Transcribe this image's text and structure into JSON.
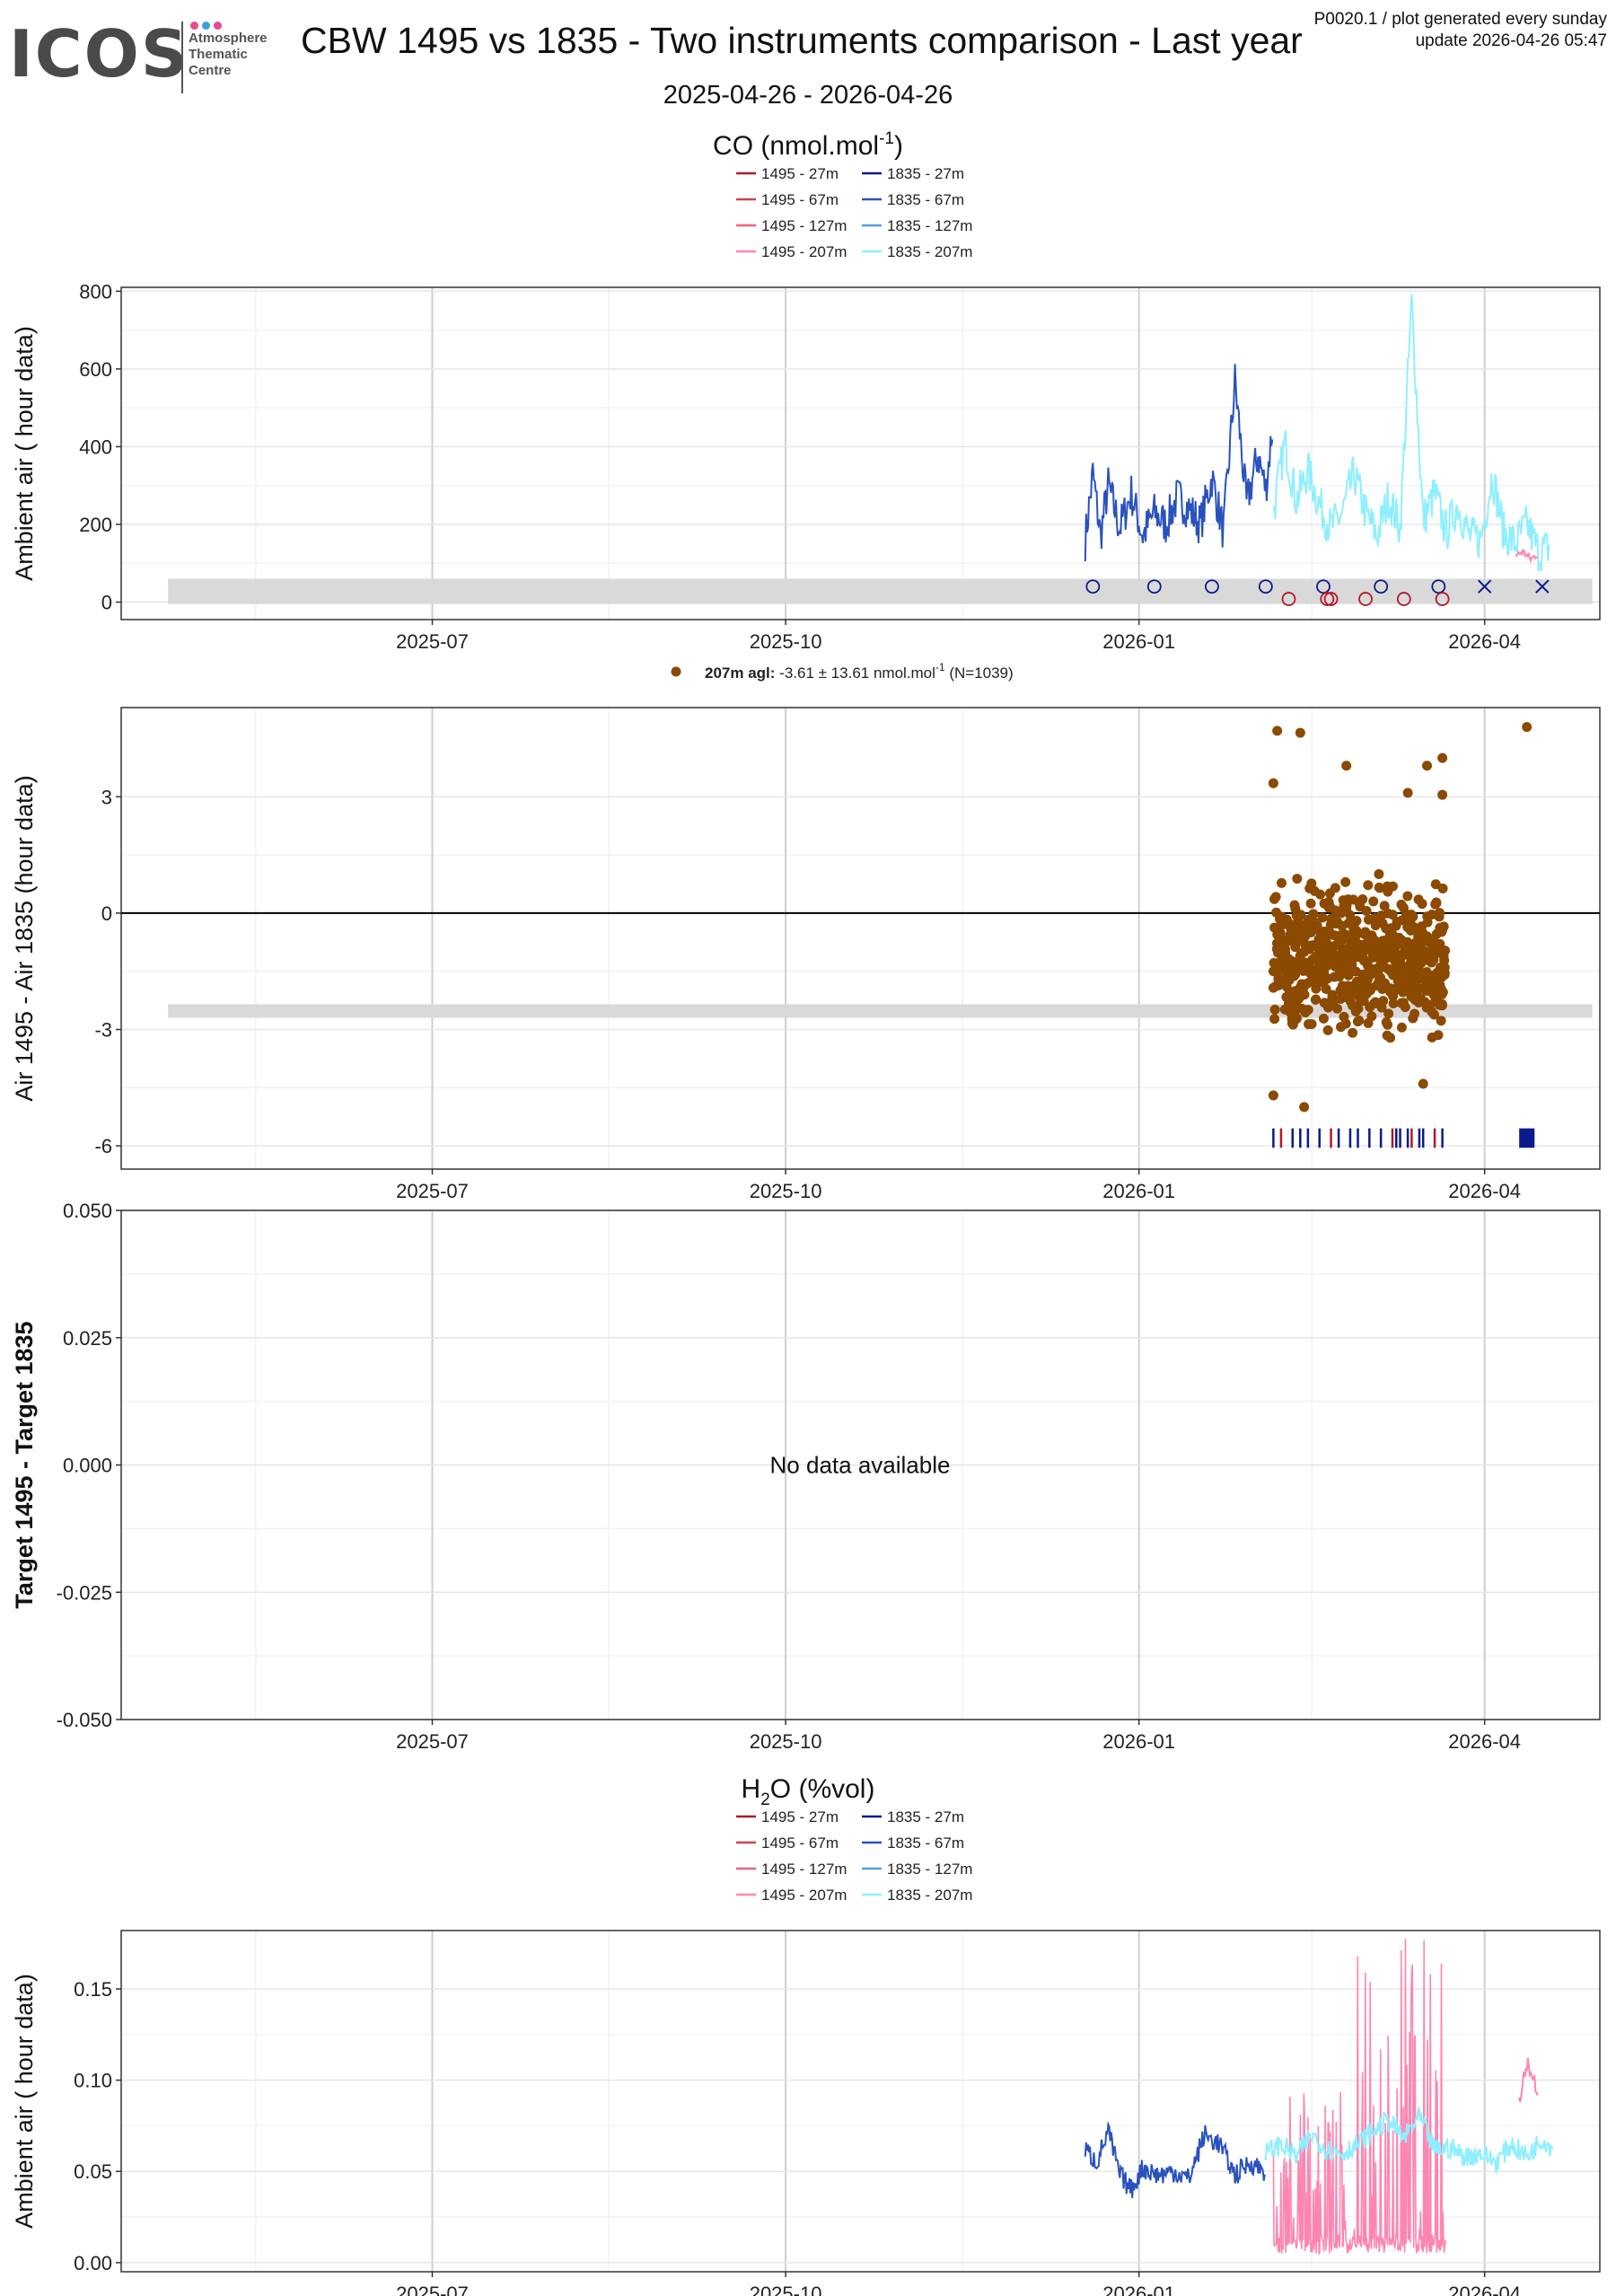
{
  "header": {
    "logo_text": "ICOS",
    "logo_subtitle": [
      "Atmosphere",
      "Thematic",
      "Centre"
    ],
    "title": "CBW 1495 vs 1835 - Two instruments comparison - Last year",
    "date_range": "2025-04-26 - 2026-04-26",
    "plot_code": "P0020.1 / plot generated every sunday",
    "update": "update  2026-04-26 05:47"
  },
  "colors": {
    "1495-27m": "#b2182b",
    "1495-67m": "#d6404e",
    "1495-127m": "#f0607a",
    "1495-207m": "#ff85b0",
    "1835-27m": "#0b1a8c",
    "1835-67m": "#2a52be",
    "1835-127m": "#5a9be0",
    "1835-207m": "#8fefff",
    "diff": "#8b4a00",
    "band": "#d9d9d9",
    "grid": "#ebebeb"
  },
  "legend_entries_left": [
    "1495 - 27m",
    "1495 - 67m",
    "1495 - 127m",
    "1495 - 207m"
  ],
  "legend_entries_right": [
    "1835 - 27m",
    "1835 - 67m",
    "1835 - 127m",
    "1835 - 207m"
  ],
  "x_ticks": [
    "2025-07",
    "2025-10",
    "2026-01",
    "2026-04"
  ],
  "chart_data": [
    {
      "type": "line",
      "section_title": "CO (nmol.mol",
      "section_title_sup": "-1",
      "section_title_end": ")",
      "ylabel": "Ambient air ( hour data)",
      "ylim": [
        -45,
        810
      ],
      "yticks": [
        "0",
        "200",
        "400",
        "600",
        "800"
      ],
      "ytick_values": [
        0,
        200,
        400,
        600,
        800
      ],
      "xlim": [
        "2025-04-26",
        "2026-04-26"
      ],
      "series": [
        {
          "name": "1835 - 67m",
          "color_key": "1835-67m",
          "x": [
            "2025-12-18",
            "2025-12-20",
            "2025-12-22",
            "2025-12-24",
            "2025-12-27",
            "2025-12-30",
            "2026-01-02",
            "2026-01-05",
            "2026-01-08",
            "2026-01-11",
            "2026-01-14",
            "2026-01-17",
            "2026-01-20",
            "2026-01-23",
            "2026-01-26",
            "2026-01-29",
            "2026-02-01",
            "2026-02-03",
            "2026-02-05"
          ],
          "y": [
            160,
            330,
            170,
            300,
            190,
            280,
            170,
            230,
            200,
            270,
            240,
            200,
            320,
            180,
            570,
            250,
            380,
            290,
            470
          ]
        },
        {
          "name": "1835 - 207m",
          "color_key": "1835-207m",
          "x": [
            "2026-02-05",
            "2026-02-08",
            "2026-02-11",
            "2026-02-14",
            "2026-02-17",
            "2026-02-20",
            "2026-02-23",
            "2026-02-26",
            "2026-03-01",
            "2026-03-04",
            "2026-03-07",
            "2026-03-10",
            "2026-03-13",
            "2026-03-16",
            "2026-03-19",
            "2026-03-22",
            "2026-03-25",
            "2026-03-28",
            "2026-03-31",
            "2026-04-03",
            "2026-04-06",
            "2026-04-09",
            "2026-04-12",
            "2026-04-15",
            "2026-04-18"
          ],
          "y": [
            230,
            410,
            260,
            340,
            250,
            190,
            230,
            330,
            230,
            170,
            270,
            190,
            770,
            210,
            280,
            180,
            250,
            170,
            160,
            330,
            180,
            150,
            200,
            130,
            140
          ]
        },
        {
          "name": "1495 - 207m",
          "color_key": "1495-207m",
          "x": [
            "2026-04-09",
            "2026-04-11",
            "2026-04-13",
            "2026-04-15"
          ],
          "y": [
            120,
            130,
            110,
            125
          ]
        }
      ],
      "markers_circle_1835": [
        "2025-12-20",
        "2026-01-05",
        "2026-01-20",
        "2026-02-03",
        "2026-02-18",
        "2026-03-05",
        "2026-03-20"
      ],
      "markers_circle_1495": [
        "2026-02-09",
        "2026-02-19",
        "2026-02-20",
        "2026-03-01",
        "2026-03-11",
        "2026-03-21"
      ],
      "markers_x_1835": [
        "2026-04-01",
        "2026-04-16"
      ],
      "band": [
        -5,
        60
      ]
    },
    {
      "type": "scatter",
      "legend_label_bold": "207m agl:",
      "legend_label": " -3.61 ± 13.61 nmol.mol",
      "legend_sup": "-1",
      "legend_n": "(N=1039)",
      "ylabel": "Air 1495 - Air 1835 (hour data)",
      "ylim": [
        -6.6,
        5.3
      ],
      "yticks": [
        "3",
        "0",
        "-3",
        "-6"
      ],
      "ytick_values": [
        3,
        0,
        -3,
        -6
      ],
      "xlim": [
        "2025-04-26",
        "2026-04-26"
      ],
      "point_range": {
        "x_start": "2026-02-05",
        "x_end": "2026-03-22",
        "y_center": -1.2,
        "y_spread": 1.4,
        "count": 1039
      },
      "outliers": [
        {
          "x": "2026-02-06",
          "y": 4.7
        },
        {
          "x": "2026-02-12",
          "y": 4.65
        },
        {
          "x": "2026-02-24",
          "y": 3.8
        },
        {
          "x": "2026-03-17",
          "y": 3.8
        },
        {
          "x": "2026-03-21",
          "y": 4.0
        },
        {
          "x": "2026-04-12",
          "y": 4.8
        },
        {
          "x": "2026-02-05",
          "y": 3.35
        },
        {
          "x": "2026-03-12",
          "y": 3.1
        },
        {
          "x": "2026-03-21",
          "y": 3.05
        },
        {
          "x": "2026-02-05",
          "y": -4.7
        },
        {
          "x": "2026-02-13",
          "y": -5.0
        },
        {
          "x": "2026-03-16",
          "y": -4.4
        }
      ],
      "band": [
        -2.7,
        -2.35
      ],
      "rug_ticks": [
        {
          "x": "2026-02-05",
          "c": "1835-27m"
        },
        {
          "x": "2026-02-07",
          "c": "1495-27m"
        },
        {
          "x": "2026-02-10",
          "c": "1835-27m"
        },
        {
          "x": "2026-02-12",
          "c": "1835-27m"
        },
        {
          "x": "2026-02-14",
          "c": "1835-27m"
        },
        {
          "x": "2026-02-17",
          "c": "1835-27m"
        },
        {
          "x": "2026-02-20",
          "c": "1495-27m"
        },
        {
          "x": "2026-02-22",
          "c": "1835-27m"
        },
        {
          "x": "2026-02-25",
          "c": "1835-27m"
        },
        {
          "x": "2026-02-27",
          "c": "1835-27m"
        },
        {
          "x": "2026-03-02",
          "c": "1835-27m"
        },
        {
          "x": "2026-03-05",
          "c": "1835-27m"
        },
        {
          "x": "2026-03-08",
          "c": "1495-27m"
        },
        {
          "x": "2026-03-09",
          "c": "1835-27m"
        },
        {
          "x": "2026-03-10",
          "c": "1835-27m"
        },
        {
          "x": "2026-03-12",
          "c": "1835-27m"
        },
        {
          "x": "2026-03-13",
          "c": "1495-27m"
        },
        {
          "x": "2026-03-15",
          "c": "1835-27m"
        },
        {
          "x": "2026-03-16",
          "c": "1835-27m"
        },
        {
          "x": "2026-03-19",
          "c": "1495-27m"
        },
        {
          "x": "2026-03-21",
          "c": "1835-27m"
        }
      ],
      "rug_block": {
        "x_start": "2026-04-10",
        "x_end": "2026-04-14",
        "c": "1835-27m"
      }
    },
    {
      "type": "scatter",
      "ylabel": "Target 1495 - Target 1835",
      "ylim": [
        -0.05,
        0.05
      ],
      "yticks": [
        "0.050",
        "0.025",
        "0.000",
        "-0.025",
        "-0.050"
      ],
      "ytick_values": [
        0.05,
        0.025,
        0,
        -0.025,
        -0.05
      ],
      "xlim": [
        "2025-04-26",
        "2026-04-26"
      ],
      "no_data_text": "No data available"
    },
    {
      "type": "line",
      "section_title": "H",
      "section_title_sub": "2",
      "section_title_end": "O (%vol)",
      "ylabel": "Ambient air ( hour data)",
      "ylim": [
        -0.005,
        0.182
      ],
      "yticks": [
        "0.15",
        "0.10",
        "0.05",
        "0.00"
      ],
      "ytick_values": [
        0.15,
        0.1,
        0.05,
        0.0
      ],
      "xlim": [
        "2025-04-26",
        "2026-04-26"
      ],
      "series": [
        {
          "name": "1835 - 67m",
          "color_key": "1835-67m",
          "x": [
            "2025-12-18",
            "2025-12-21",
            "2025-12-24",
            "2025-12-27",
            "2025-12-30",
            "2026-01-02",
            "2026-01-06",
            "2026-01-10",
            "2026-01-14",
            "2026-01-18",
            "2026-01-22",
            "2026-01-26",
            "2026-01-30",
            "2026-02-03"
          ],
          "y": [
            0.062,
            0.055,
            0.072,
            0.048,
            0.04,
            0.052,
            0.048,
            0.05,
            0.046,
            0.07,
            0.065,
            0.048,
            0.055,
            0.05
          ]
        },
        {
          "name": "1835 - 207m",
          "color_key": "1835-207m",
          "x": [
            "2026-02-03",
            "2026-02-07",
            "2026-02-11",
            "2026-02-15",
            "2026-02-19",
            "2026-02-23",
            "2026-02-27",
            "2026-03-03",
            "2026-03-07",
            "2026-03-11",
            "2026-03-15",
            "2026-03-19",
            "2026-03-23",
            "2026-03-27",
            "2026-03-31",
            "2026-04-04",
            "2026-04-08",
            "2026-04-12",
            "2026-04-16",
            "2026-04-19"
          ],
          "y": [
            0.06,
            0.065,
            0.058,
            0.07,
            0.062,
            0.06,
            0.065,
            0.072,
            0.078,
            0.068,
            0.08,
            0.062,
            0.063,
            0.058,
            0.06,
            0.055,
            0.065,
            0.058,
            0.068,
            0.062
          ]
        },
        {
          "name": "1495 - 207m",
          "color_key": "1495-207m",
          "x": [
            "2026-04-10",
            "2026-04-12",
            "2026-04-14",
            "2026-04-15"
          ],
          "y": [
            0.09,
            0.11,
            0.1,
            0.09
          ]
        }
      ],
      "spike_range": {
        "x_start": "2026-02-05",
        "x_end": "2026-03-22",
        "base": 0.005,
        "peak_max": 0.175
      }
    }
  ]
}
